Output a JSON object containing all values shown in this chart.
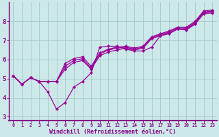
{
  "background_color": "#cce8e8",
  "grid_color": "#aacccc",
  "line_color": "#990099",
  "xlabel": "Windchill (Refroidissement éolien,°C)",
  "xlabel_color": "#880088",
  "xlim": [
    -0.5,
    23.5
  ],
  "ylim": [
    2.8,
    9.0
  ],
  "yticks": [
    3,
    4,
    5,
    6,
    7,
    8
  ],
  "xticks": [
    0,
    1,
    2,
    3,
    4,
    5,
    6,
    7,
    8,
    9,
    10,
    11,
    12,
    13,
    14,
    15,
    16,
    17,
    18,
    19,
    20,
    21,
    22,
    23
  ],
  "series": [
    [
      5.15,
      4.7,
      5.05,
      4.85,
      4.3,
      3.4,
      3.75,
      4.55,
      4.85,
      5.3,
      6.65,
      6.7,
      6.7,
      6.55,
      6.45,
      6.45,
      6.65,
      7.25,
      7.35,
      7.6,
      7.55,
      7.85,
      8.4,
      8.45
    ],
    [
      5.15,
      4.7,
      5.05,
      4.85,
      4.85,
      4.85,
      5.5,
      5.85,
      5.95,
      5.5,
      6.2,
      6.4,
      6.5,
      6.6,
      6.5,
      6.6,
      7.1,
      7.25,
      7.4,
      7.6,
      7.6,
      7.9,
      8.45,
      8.5
    ],
    [
      5.15,
      4.7,
      5.05,
      4.85,
      4.85,
      4.85,
      5.65,
      5.95,
      6.05,
      5.55,
      6.3,
      6.5,
      6.6,
      6.65,
      6.55,
      6.65,
      7.15,
      7.3,
      7.45,
      7.65,
      7.65,
      7.95,
      8.5,
      8.55
    ],
    [
      5.15,
      4.7,
      5.05,
      4.85,
      4.85,
      4.85,
      5.8,
      6.05,
      6.15,
      5.65,
      6.35,
      6.55,
      6.65,
      6.7,
      6.6,
      6.7,
      7.2,
      7.35,
      7.5,
      7.7,
      7.7,
      8.0,
      8.55,
      8.6
    ]
  ]
}
